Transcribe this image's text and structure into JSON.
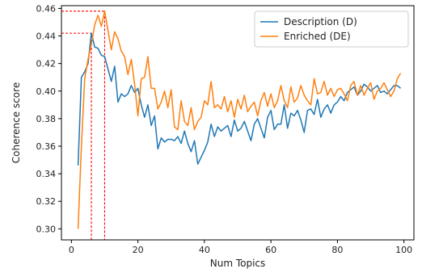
{
  "chart_data": {
    "type": "line",
    "title": "",
    "xlabel": "Num Topics",
    "ylabel": "Coherence score",
    "xlim": [
      -3,
      103
    ],
    "ylim": [
      0.292,
      0.462
    ],
    "xticks": [
      0,
      20,
      40,
      60,
      80,
      100
    ],
    "yticks": [
      0.3,
      0.32,
      0.34,
      0.36,
      0.38,
      0.4,
      0.42,
      0.44,
      0.46
    ],
    "grid": false,
    "legend_position": "top-right",
    "series": [
      {
        "name": "Description (D)",
        "color": "#1f77b4",
        "x": [
          2,
          3,
          4,
          5,
          6,
          7,
          8,
          9,
          10,
          11,
          12,
          13,
          14,
          15,
          16,
          17,
          18,
          19,
          20,
          21,
          22,
          23,
          24,
          25,
          26,
          27,
          28,
          29,
          30,
          31,
          32,
          33,
          34,
          35,
          36,
          37,
          38,
          39,
          40,
          41,
          42,
          43,
          44,
          45,
          46,
          47,
          48,
          49,
          50,
          51,
          52,
          53,
          54,
          55,
          56,
          57,
          58,
          59,
          60,
          61,
          62,
          63,
          64,
          65,
          66,
          67,
          68,
          69,
          70,
          71,
          72,
          73,
          74,
          75,
          76,
          77,
          78,
          79,
          80,
          81,
          82,
          83,
          84,
          85,
          86,
          87,
          88,
          89,
          90,
          91,
          92,
          93,
          94,
          95,
          96,
          97,
          98,
          99
        ],
        "y": [
          0.346,
          0.41,
          0.414,
          0.42,
          0.442,
          0.432,
          0.431,
          0.426,
          0.425,
          0.416,
          0.407,
          0.418,
          0.392,
          0.398,
          0.396,
          0.398,
          0.404,
          0.399,
          0.402,
          0.39,
          0.381,
          0.39,
          0.375,
          0.382,
          0.358,
          0.366,
          0.363,
          0.365,
          0.365,
          0.364,
          0.367,
          0.362,
          0.371,
          0.362,
          0.356,
          0.364,
          0.347,
          0.352,
          0.357,
          0.363,
          0.376,
          0.367,
          0.374,
          0.371,
          0.373,
          0.375,
          0.367,
          0.379,
          0.371,
          0.373,
          0.378,
          0.371,
          0.364,
          0.376,
          0.38,
          0.373,
          0.366,
          0.381,
          0.386,
          0.372,
          0.376,
          0.376,
          0.39,
          0.373,
          0.384,
          0.382,
          0.386,
          0.379,
          0.37,
          0.386,
          0.387,
          0.383,
          0.394,
          0.381,
          0.387,
          0.39,
          0.384,
          0.39,
          0.392,
          0.396,
          0.393,
          0.399,
          0.401,
          0.403,
          0.397,
          0.4,
          0.405,
          0.403,
          0.4,
          0.402,
          0.404,
          0.399,
          0.4,
          0.398,
          0.401,
          0.404,
          0.404,
          0.402
        ]
      },
      {
        "name": "Enriched (DE)",
        "color": "#ff7f0e",
        "x": [
          2,
          3,
          4,
          5,
          6,
          7,
          8,
          9,
          10,
          11,
          12,
          13,
          14,
          15,
          16,
          17,
          18,
          19,
          20,
          21,
          22,
          23,
          24,
          25,
          26,
          27,
          28,
          29,
          30,
          31,
          32,
          33,
          34,
          35,
          36,
          37,
          38,
          39,
          40,
          41,
          42,
          43,
          44,
          45,
          46,
          47,
          48,
          49,
          50,
          51,
          52,
          53,
          54,
          55,
          56,
          57,
          58,
          59,
          60,
          61,
          62,
          63,
          64,
          65,
          66,
          67,
          68,
          69,
          70,
          71,
          72,
          73,
          74,
          75,
          76,
          77,
          78,
          79,
          80,
          81,
          82,
          83,
          84,
          85,
          86,
          87,
          88,
          89,
          90,
          91,
          92,
          93,
          94,
          95,
          96,
          97,
          98,
          99
        ],
        "y": [
          0.3,
          0.36,
          0.409,
          0.423,
          0.434,
          0.448,
          0.455,
          0.447,
          0.458,
          0.444,
          0.43,
          0.443,
          0.438,
          0.429,
          0.425,
          0.412,
          0.423,
          0.405,
          0.382,
          0.409,
          0.41,
          0.425,
          0.402,
          0.402,
          0.387,
          0.392,
          0.4,
          0.388,
          0.401,
          0.374,
          0.372,
          0.393,
          0.378,
          0.375,
          0.388,
          0.372,
          0.378,
          0.381,
          0.393,
          0.39,
          0.407,
          0.388,
          0.39,
          0.387,
          0.396,
          0.385,
          0.393,
          0.381,
          0.394,
          0.387,
          0.397,
          0.385,
          0.389,
          0.392,
          0.382,
          0.393,
          0.399,
          0.389,
          0.398,
          0.388,
          0.393,
          0.404,
          0.393,
          0.388,
          0.403,
          0.392,
          0.395,
          0.404,
          0.397,
          0.393,
          0.39,
          0.409,
          0.398,
          0.399,
          0.407,
          0.397,
          0.402,
          0.396,
          0.401,
          0.402,
          0.398,
          0.393,
          0.404,
          0.407,
          0.397,
          0.404,
          0.397,
          0.402,
          0.406,
          0.394,
          0.4,
          0.402,
          0.406,
          0.401,
          0.396,
          0.4,
          0.409,
          0.413
        ]
      }
    ],
    "reference_lines": [
      {
        "color": "#ff0000",
        "x": 6,
        "y": 0.442
      },
      {
        "color": "#ff0000",
        "x": 10,
        "y": 0.458
      }
    ]
  }
}
